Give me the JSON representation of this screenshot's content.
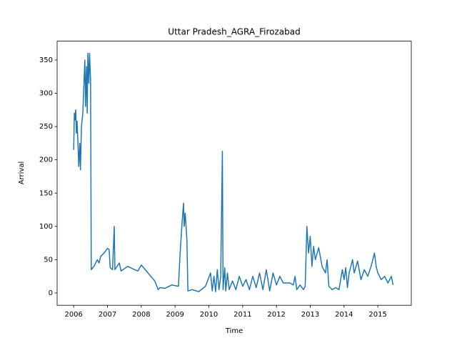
{
  "chart_data": {
    "type": "line",
    "title": "Uttar Pradesh_AGRA_Firozabad",
    "x_label": "Time",
    "y_label": "Arrival",
    "color": "#1f77b4",
    "xlim": [
      2005.51,
      2015.99
    ],
    "ylim": [
      -18.5,
      378.3
    ],
    "xticks": [
      2006,
      2007,
      2008,
      2009,
      2010,
      2011,
      2012,
      2013,
      2014,
      2015
    ],
    "yticks": [
      0,
      50,
      100,
      150,
      200,
      250,
      300,
      350
    ],
    "x": [
      2006.0,
      2006.02,
      2006.04,
      2006.06,
      2006.08,
      2006.1,
      2006.13,
      2006.15,
      2006.18,
      2006.2,
      2006.23,
      2006.27,
      2006.3,
      2006.33,
      2006.35,
      2006.38,
      2006.4,
      2006.42,
      2006.45,
      2006.47,
      2006.5,
      2006.52,
      2006.6,
      2006.7,
      2006.75,
      2006.8,
      2006.9,
      2007.0,
      2007.05,
      2007.08,
      2007.15,
      2007.2,
      2007.22,
      2007.35,
      2007.4,
      2007.6,
      2007.8,
      2007.9,
      2008.0,
      2008.2,
      2008.4,
      2008.5,
      2008.55,
      2008.7,
      2008.9,
      2009.1,
      2009.15,
      2009.2,
      2009.25,
      2009.27,
      2009.3,
      2009.35,
      2009.38,
      2009.5,
      2009.7,
      2009.9,
      2010.05,
      2010.1,
      2010.15,
      2010.2,
      2010.25,
      2010.3,
      2010.35,
      2010.4,
      2010.42,
      2010.47,
      2010.5,
      2010.55,
      2010.6,
      2010.7,
      2010.8,
      2010.9,
      2011.0,
      2011.1,
      2011.2,
      2011.3,
      2011.4,
      2011.5,
      2011.6,
      2011.7,
      2011.8,
      2011.9,
      2012.0,
      2012.1,
      2012.2,
      2012.4,
      2012.5,
      2012.55,
      2012.6,
      2012.7,
      2012.8,
      2012.85,
      2012.9,
      2012.95,
      2013.0,
      2013.05,
      2013.1,
      2013.15,
      2013.25,
      2013.35,
      2013.45,
      2013.5,
      2013.55,
      2013.65,
      2013.75,
      2013.85,
      2013.95,
      2014.0,
      2014.05,
      2014.1,
      2014.15,
      2014.25,
      2014.3,
      2014.4,
      2014.5,
      2014.6,
      2014.7,
      2014.8,
      2014.9,
      2014.95,
      2015.0,
      2015.1,
      2015.2,
      2015.3,
      2015.4,
      2015.45
    ],
    "values": [
      215,
      270,
      260,
      275,
      240,
      258,
      220,
      190,
      225,
      185,
      250,
      270,
      310,
      350,
      280,
      340,
      270,
      360,
      315,
      360,
      320,
      35,
      40,
      50,
      45,
      55,
      60,
      67,
      65,
      38,
      35,
      100,
      35,
      45,
      33,
      40,
      35,
      33,
      42,
      30,
      18,
      5,
      8,
      7,
      12,
      10,
      60,
      100,
      135,
      100,
      120,
      80,
      3,
      5,
      2,
      10,
      30,
      3,
      25,
      2,
      35,
      5,
      25,
      213,
      5,
      38,
      3,
      30,
      5,
      18,
      5,
      25,
      10,
      20,
      5,
      25,
      8,
      30,
      5,
      35,
      3,
      30,
      12,
      25,
      15,
      15,
      12,
      25,
      5,
      12,
      5,
      10,
      100,
      60,
      85,
      40,
      70,
      50,
      68,
      40,
      30,
      50,
      10,
      5,
      8,
      5,
      35,
      20,
      38,
      8,
      30,
      50,
      30,
      48,
      20,
      35,
      25,
      40,
      60,
      40,
      30,
      20,
      25,
      15,
      25,
      12
    ]
  }
}
